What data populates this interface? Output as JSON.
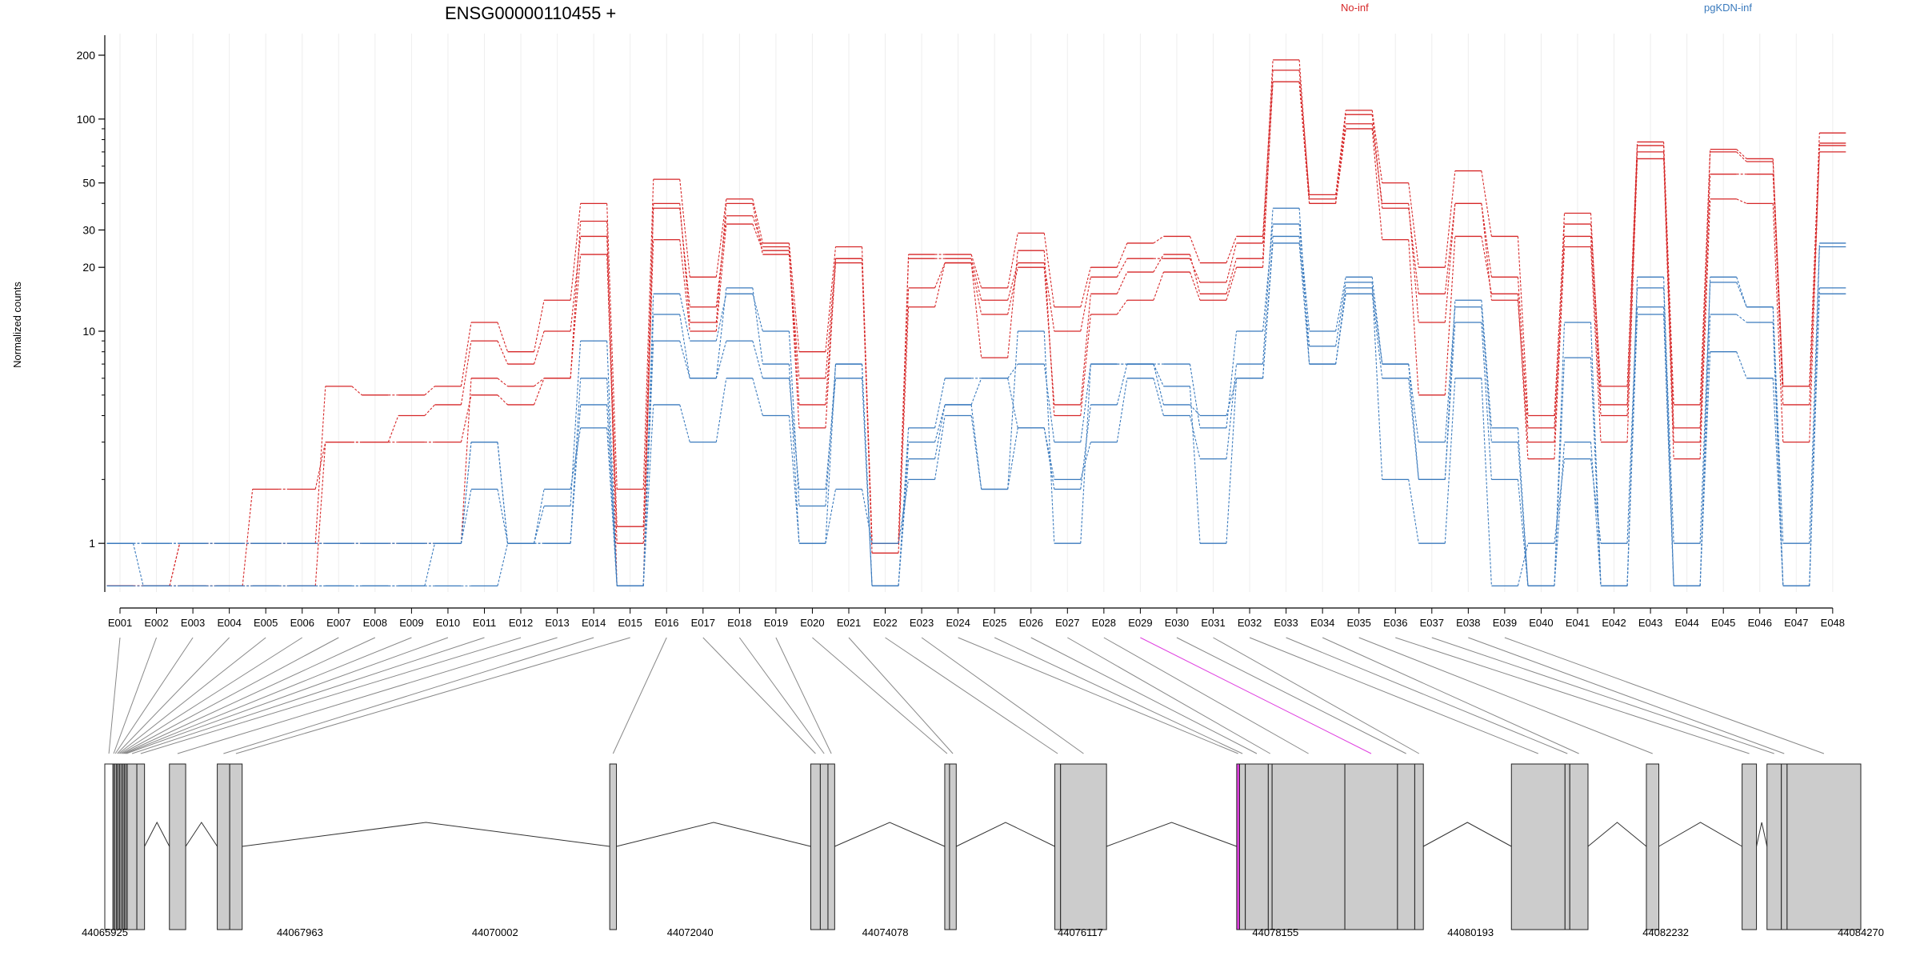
{
  "chart_data": {
    "type": "line",
    "title": "ENSG00000110455 +",
    "ylabel": "Normalized counts",
    "xlabel": "",
    "yscale": "log",
    "ylim": [
      0.6,
      240
    ],
    "yticks": [
      1,
      10,
      20,
      30,
      50,
      100,
      200
    ],
    "grid": "vertical, light",
    "legend_placement": "top",
    "categories": [
      "E001",
      "E002",
      "E003",
      "E004",
      "E005",
      "E006",
      "E007",
      "E008",
      "E009",
      "E010",
      "E011",
      "E012",
      "E013",
      "E014",
      "E015",
      "E016",
      "E017",
      "E018",
      "E019",
      "E020",
      "E021",
      "E022",
      "E023",
      "E024",
      "E025",
      "E026",
      "E027",
      "E028",
      "E029",
      "E030",
      "E031",
      "E032",
      "E033",
      "E034",
      "E035",
      "E036",
      "E037",
      "E038",
      "E039",
      "E040",
      "E041",
      "E042",
      "E043",
      "E044",
      "E045",
      "E046",
      "E047",
      "E048"
    ],
    "highlighted_exon": "E029",
    "series": [
      {
        "name": "No-inf",
        "color": "#d62728",
        "samples": [
          [
            0.63,
            0.63,
            1,
            1,
            1,
            1,
            1,
            1,
            1,
            1,
            6,
            5.5,
            6,
            33,
            0.63,
            40,
            11,
            40,
            23,
            6,
            22,
            1,
            22,
            22,
            14,
            21,
            10,
            18,
            22,
            22,
            17,
            26,
            190,
            42,
            105,
            38,
            15,
            40,
            18,
            3.5,
            36,
            4.5,
            75,
            3.5,
            70,
            63,
            5.5,
            77
          ],
          [
            0.63,
            0.63,
            1,
            1,
            1,
            1,
            5.5,
            5,
            5,
            5.5,
            11,
            8,
            14,
            40,
            1.8,
            52,
            18,
            42,
            26,
            8,
            25,
            1,
            23,
            23,
            16,
            29,
            13,
            20,
            26,
            28,
            21,
            28,
            170,
            44,
            110,
            50,
            20,
            57,
            28,
            4,
            32,
            5.5,
            78,
            4.5,
            72,
            65,
            5.5,
            86
          ],
          [
            0.63,
            0.63,
            0.63,
            0.63,
            1.8,
            1.8,
            3,
            3,
            4,
            4.5,
            9,
            7,
            10,
            28,
            1.2,
            38,
            13,
            35,
            25,
            4.5,
            21,
            0.9,
            13,
            21,
            12,
            20,
            4.5,
            15,
            19,
            23,
            15,
            22,
            150,
            40,
            95,
            40,
            11,
            40,
            14,
            3,
            28,
            4,
            70,
            3,
            55,
            55,
            4.5,
            70
          ],
          [
            0.63,
            0.63,
            0.63,
            0.63,
            0.63,
            0.63,
            3,
            3,
            3,
            3,
            5,
            4.5,
            6,
            23,
            1,
            27,
            10,
            32,
            24,
            3.5,
            22,
            1,
            16,
            21,
            7.5,
            24,
            4,
            12,
            14,
            19,
            14,
            20,
            150,
            40,
            90,
            27,
            5,
            28,
            15,
            2.5,
            25,
            3,
            65,
            2.5,
            42,
            40,
            3,
            75
          ]
        ]
      },
      {
        "name": "pgKDN-inf",
        "color": "#3a7abd",
        "samples": [
          [
            1,
            1,
            1,
            1,
            1,
            1,
            1,
            1,
            1,
            1,
            3,
            1,
            1,
            6,
            0.63,
            9,
            6,
            9,
            6,
            1.8,
            6,
            0.63,
            3,
            4.5,
            1.8,
            3.5,
            1.8,
            4.5,
            7,
            4.5,
            4,
            6,
            26,
            7,
            15,
            6,
            2,
            11,
            2,
            0.63,
            3,
            0.63,
            12,
            0.63,
            8,
            6,
            0.63,
            15
          ],
          [
            1,
            0.63,
            0.63,
            0.63,
            0.63,
            0.63,
            0.63,
            0.63,
            0.63,
            1,
            1.8,
            1,
            1.5,
            9,
            0.63,
            15,
            9,
            15,
            10,
            1.5,
            7,
            0.63,
            3.5,
            6,
            6,
            7,
            3,
            7,
            7,
            7,
            3.5,
            10,
            32,
            10,
            18,
            7,
            3,
            13,
            3,
            0.63,
            7.5,
            0.63,
            18,
            0.63,
            18,
            13,
            0.63,
            25
          ],
          [
            1,
            1,
            1,
            1,
            1,
            1,
            1,
            1,
            1,
            1,
            3,
            1,
            1,
            4.5,
            0.63,
            4.5,
            3,
            6,
            4,
            1,
            7,
            0.63,
            2.5,
            4.5,
            6,
            3.5,
            2,
            3,
            6,
            4,
            2.5,
            7,
            38,
            7,
            16,
            7,
            2,
            14,
            3.5,
            0.63,
            11,
            0.63,
            13,
            0.63,
            12,
            11,
            0.63,
            16
          ],
          [
            0.63,
            0.63,
            0.63,
            0.63,
            0.63,
            0.63,
            0.63,
            0.63,
            0.63,
            0.63,
            0.63,
            1,
            1.8,
            3.5,
            0.63,
            12,
            6,
            16,
            7,
            1,
            1.8,
            1,
            2,
            4,
            1.8,
            10,
            1,
            7,
            7,
            5.5,
            1,
            6,
            28,
            8.5,
            17,
            2,
            1,
            6,
            0.63,
            1,
            2.5,
            1,
            16,
            1,
            17,
            13,
            1,
            26
          ]
        ]
      }
    ]
  },
  "gene_model": {
    "start_coord": 44065925,
    "end_coord": 44084270,
    "coord_labels": [
      "44065925",
      "44067963",
      "44070002",
      "44072040",
      "44074078",
      "44076117",
      "44078155",
      "44080193",
      "44082232",
      "44084270"
    ],
    "exons": [
      [
        44065925,
        44066010
      ],
      [
        44066015,
        44066020
      ],
      [
        44066030,
        44066040
      ],
      [
        44066050,
        44066060
      ],
      [
        44066065,
        44066075
      ],
      [
        44066080,
        44066090
      ],
      [
        44066095,
        44066110
      ],
      [
        44066115,
        44066125
      ],
      [
        44066130,
        44066140
      ],
      [
        44066145,
        44066155
      ],
      [
        44066160,
        44066260
      ],
      [
        44066260,
        44066340
      ],
      [
        44066600,
        44066770
      ],
      [
        44067100,
        44067230
      ],
      [
        44067230,
        44067360
      ],
      [
        44071200,
        44071270
      ],
      [
        44073300,
        44073400
      ],
      [
        44073400,
        44073480
      ],
      [
        44073480,
        44073550
      ],
      [
        44074700,
        44074750
      ],
      [
        44074750,
        44074820
      ],
      [
        44075850,
        44075910
      ],
      [
        44075910,
        44076390
      ],
      [
        44077750,
        44077780
      ],
      [
        44077780,
        44077840
      ],
      [
        44077840,
        44078080
      ],
      [
        44078080,
        44078120
      ],
      [
        44078120,
        44078880
      ],
      [
        44078880,
        44079430
      ],
      [
        44079430,
        44079610
      ],
      [
        44079610,
        44079700
      ],
      [
        44080620,
        44081180
      ],
      [
        44081180,
        44081230
      ],
      [
        44081230,
        44081420
      ],
      [
        44082030,
        44082160
      ],
      [
        44083030,
        44083180
      ],
      [
        44083290,
        44083440
      ],
      [
        44083440,
        44083500
      ],
      [
        44083500,
        44084270
      ]
    ],
    "highlight_index": 23,
    "highlight_color": "#e040e0"
  },
  "legend": [
    {
      "label": "No-inf",
      "color": "#d62728"
    },
    {
      "label": "pgKDN-inf",
      "color": "#3a7abd"
    }
  ]
}
